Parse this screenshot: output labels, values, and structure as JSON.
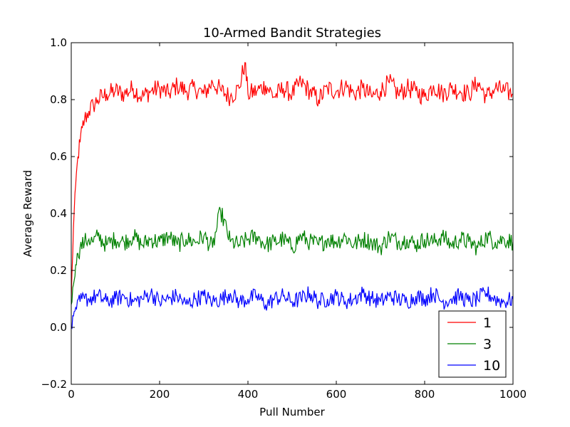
{
  "chart_data": {
    "type": "line",
    "title": "10-Armed Bandit Strategies",
    "xlabel": "Pull Number",
    "ylabel": "Average Reward",
    "xlim": [
      0,
      1000
    ],
    "ylim": [
      -0.2,
      1.0
    ],
    "grid": false,
    "legend_position": "bottom-right",
    "x_ticks": [
      0,
      200,
      400,
      600,
      800,
      1000
    ],
    "x_tick_labels": [
      "0",
      "200",
      "400",
      "600",
      "800",
      "1000"
    ],
    "y_ticks": [
      -0.2,
      0.0,
      0.2,
      0.4,
      0.6,
      0.8,
      1.0
    ],
    "y_tick_labels": [
      "−0.2",
      "0.0",
      "0.2",
      "0.4",
      "0.6",
      "0.8",
      "1.0"
    ],
    "series": [
      {
        "name": "1",
        "color": "#ff0000",
        "x": [
          0,
          5,
          10,
          15,
          20,
          25,
          30,
          40,
          50,
          60,
          70,
          80,
          100,
          120,
          140,
          160,
          180,
          200,
          220,
          240,
          260,
          280,
          300,
          320,
          340,
          360,
          380,
          393,
          400,
          420,
          440,
          460,
          480,
          500,
          520,
          540,
          560,
          580,
          600,
          620,
          640,
          660,
          680,
          700,
          720,
          740,
          760,
          780,
          800,
          820,
          840,
          860,
          880,
          900,
          920,
          940,
          960,
          980,
          1000
        ],
        "y": [
          0.1,
          0.35,
          0.5,
          0.6,
          0.65,
          0.7,
          0.73,
          0.76,
          0.78,
          0.8,
          0.81,
          0.82,
          0.83,
          0.82,
          0.84,
          0.81,
          0.83,
          0.84,
          0.82,
          0.85,
          0.83,
          0.84,
          0.82,
          0.86,
          0.83,
          0.81,
          0.84,
          0.93,
          0.82,
          0.83,
          0.85,
          0.81,
          0.84,
          0.82,
          0.86,
          0.83,
          0.8,
          0.84,
          0.83,
          0.85,
          0.82,
          0.84,
          0.81,
          0.83,
          0.86,
          0.82,
          0.84,
          0.83,
          0.81,
          0.85,
          0.82,
          0.84,
          0.83,
          0.82,
          0.86,
          0.81,
          0.84,
          0.83,
          0.82
        ]
      },
      {
        "name": "3",
        "color": "#008000",
        "x": [
          0,
          5,
          10,
          15,
          20,
          30,
          40,
          50,
          60,
          80,
          100,
          120,
          140,
          160,
          180,
          200,
          220,
          240,
          260,
          280,
          300,
          320,
          338,
          360,
          380,
          400,
          420,
          440,
          460,
          480,
          500,
          520,
          540,
          560,
          580,
          600,
          620,
          640,
          660,
          680,
          700,
          720,
          740,
          760,
          780,
          800,
          820,
          840,
          860,
          880,
          900,
          920,
          940,
          960,
          980,
          1000
        ],
        "y": [
          0.08,
          0.15,
          0.22,
          0.26,
          0.28,
          0.3,
          0.31,
          0.3,
          0.32,
          0.29,
          0.31,
          0.3,
          0.32,
          0.29,
          0.31,
          0.3,
          0.32,
          0.29,
          0.31,
          0.3,
          0.32,
          0.28,
          0.41,
          0.3,
          0.29,
          0.31,
          0.32,
          0.29,
          0.3,
          0.31,
          0.28,
          0.32,
          0.3,
          0.29,
          0.31,
          0.3,
          0.32,
          0.29,
          0.31,
          0.3,
          0.28,
          0.32,
          0.3,
          0.31,
          0.29,
          0.31,
          0.3,
          0.32,
          0.29,
          0.31,
          0.3,
          0.28,
          0.32,
          0.3,
          0.31,
          0.3
        ]
      },
      {
        "name": "10",
        "color": "#0000ff",
        "x": [
          0,
          5,
          10,
          20,
          30,
          40,
          60,
          80,
          100,
          120,
          140,
          160,
          180,
          200,
          220,
          240,
          260,
          280,
          300,
          320,
          340,
          360,
          380,
          400,
          420,
          440,
          460,
          480,
          500,
          520,
          540,
          560,
          580,
          600,
          620,
          640,
          660,
          680,
          700,
          720,
          740,
          760,
          780,
          800,
          820,
          840,
          860,
          880,
          900,
          920,
          940,
          960,
          980,
          1000
        ],
        "y": [
          0.0,
          0.04,
          0.07,
          0.09,
          0.1,
          0.1,
          0.11,
          0.09,
          0.1,
          0.11,
          0.09,
          0.1,
          0.12,
          0.09,
          0.1,
          0.11,
          0.08,
          0.1,
          0.11,
          0.09,
          0.1,
          0.12,
          0.09,
          0.1,
          0.11,
          0.08,
          0.1,
          0.11,
          0.09,
          0.1,
          0.12,
          0.09,
          0.1,
          0.11,
          0.09,
          0.1,
          0.12,
          0.1,
          0.09,
          0.11,
          0.1,
          0.09,
          0.11,
          0.1,
          0.12,
          0.09,
          0.1,
          0.11,
          0.09,
          0.1,
          0.12,
          0.1,
          0.09,
          0.1
        ]
      }
    ]
  }
}
